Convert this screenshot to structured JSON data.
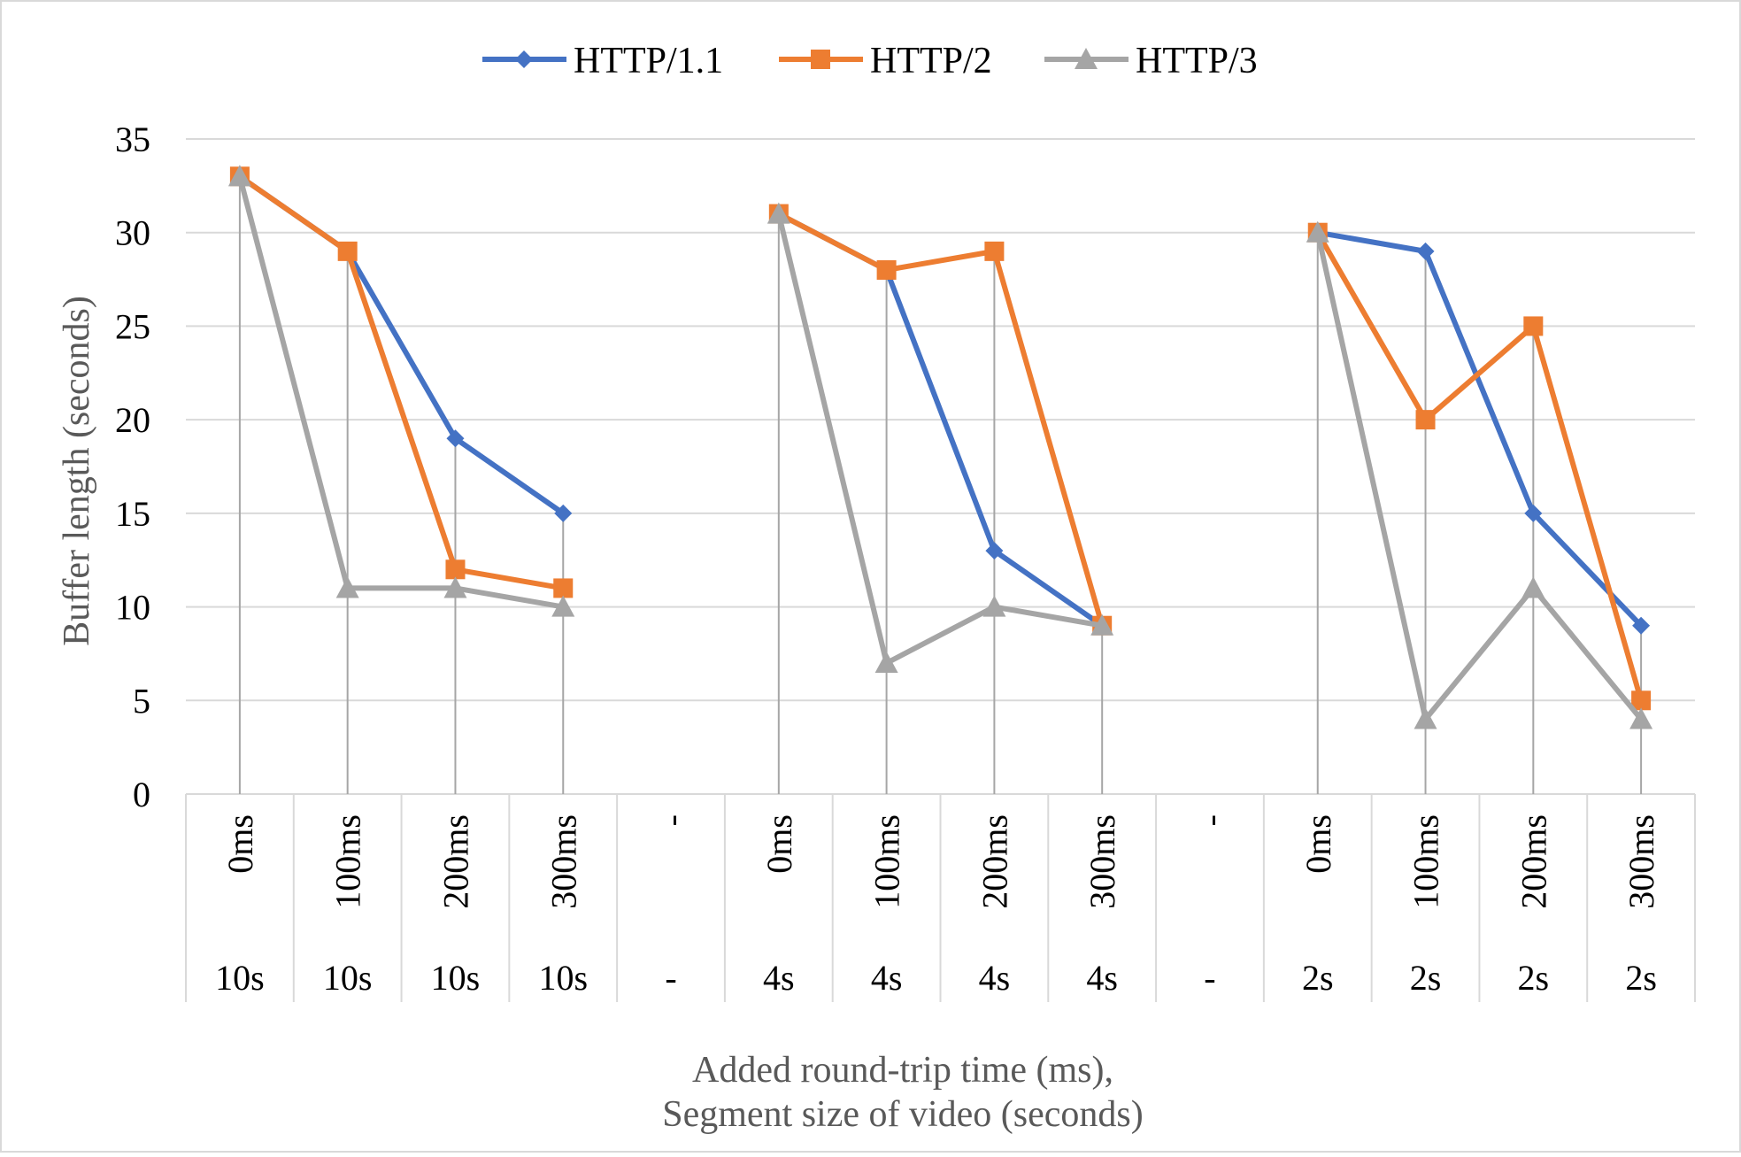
{
  "chart_data": {
    "type": "line",
    "title": "",
    "ylabel": "Buffer length (seconds)",
    "xlabel_lines": [
      "Added round-trip time (ms),",
      "Segment size of video (seconds)"
    ],
    "ylim": [
      0,
      35
    ],
    "yticks": [
      0,
      5,
      10,
      15,
      20,
      25,
      30,
      35
    ],
    "grid": true,
    "legend_position": "top",
    "categories": [
      {
        "rtt": "0ms",
        "segment": "10s"
      },
      {
        "rtt": "100ms",
        "segment": "10s"
      },
      {
        "rtt": "200ms",
        "segment": "10s"
      },
      {
        "rtt": "300ms",
        "segment": "10s"
      },
      {
        "rtt": "-",
        "segment": "-"
      },
      {
        "rtt": "0ms",
        "segment": "4s"
      },
      {
        "rtt": "100ms",
        "segment": "4s"
      },
      {
        "rtt": "200ms",
        "segment": "4s"
      },
      {
        "rtt": "300ms",
        "segment": "4s"
      },
      {
        "rtt": "-",
        "segment": "-"
      },
      {
        "rtt": "0ms",
        "segment": "2s"
      },
      {
        "rtt": "100ms",
        "segment": "2s"
      },
      {
        "rtt": "200ms",
        "segment": "2s"
      },
      {
        "rtt": "300ms",
        "segment": "2s"
      }
    ],
    "series": [
      {
        "name": "HTTP/1.1",
        "color": "#4472C4",
        "marker": "diamond",
        "values": [
          33,
          29,
          19,
          15,
          null,
          31,
          28,
          13,
          9,
          null,
          30,
          29,
          15,
          9
        ]
      },
      {
        "name": "HTTP/2",
        "color": "#ED7D31",
        "marker": "square",
        "values": [
          33,
          29,
          12,
          11,
          null,
          31,
          28,
          29,
          9,
          null,
          30,
          20,
          25,
          5
        ]
      },
      {
        "name": "HTTP/3",
        "color": "#A5A5A5",
        "marker": "triangle",
        "values": [
          33,
          11,
          11,
          10,
          null,
          31,
          7,
          10,
          9,
          null,
          30,
          4,
          11,
          4
        ]
      }
    ],
    "drop_lines": true
  }
}
